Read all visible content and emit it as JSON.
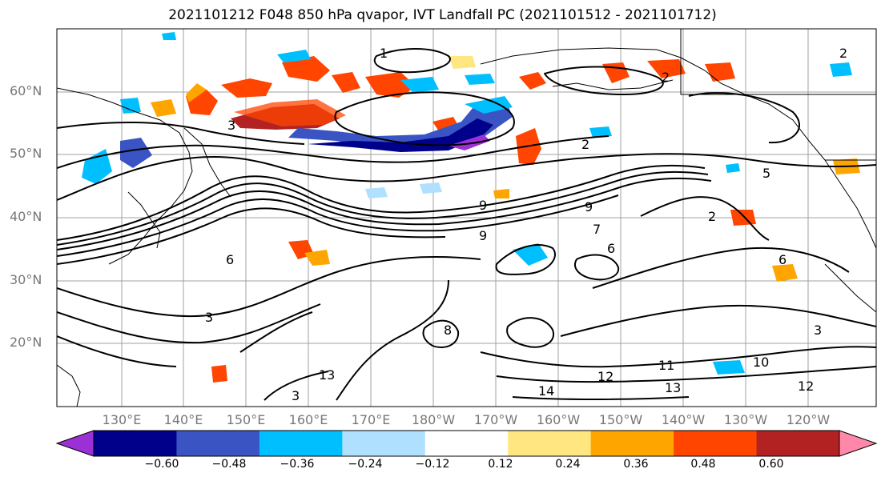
{
  "title": "2021101212 F048 850 hPa qvapor, IVT Landfall PC (2021101512 - 2021101712)",
  "latitude_labels": [
    "60°N",
    "50°N",
    "40°N",
    "30°N",
    "20°N"
  ],
  "longitude_labels": [
    "130°E",
    "140°E",
    "150°E",
    "160°E",
    "170°E",
    "180°W",
    "170°W",
    "160°W",
    "150°W",
    "140°W",
    "130°W",
    "120°W"
  ],
  "colorbar": {
    "ticks": [
      "−0.60",
      "−0.48",
      "−0.36",
      "−0.24",
      "−0.12",
      "0.12",
      "0.24",
      "0.36",
      "0.48",
      "0.60"
    ],
    "colors": [
      "#9b30d6",
      "#00008b",
      "#3a54c4",
      "#00bfff",
      "#b0e0ff",
      "#ffffff",
      "#ffe680",
      "#ffa500",
      "#ff4500",
      "#b22222",
      "#ff88aa"
    ]
  },
  "contour_labels": [
    "1",
    "2",
    "2",
    "3",
    "2",
    "5",
    "9",
    "9",
    "9",
    "6",
    "7",
    "2",
    "3",
    "6",
    "8",
    "13",
    "14",
    "12",
    "11",
    "13",
    "10",
    "3",
    "12",
    "3",
    "6"
  ]
}
